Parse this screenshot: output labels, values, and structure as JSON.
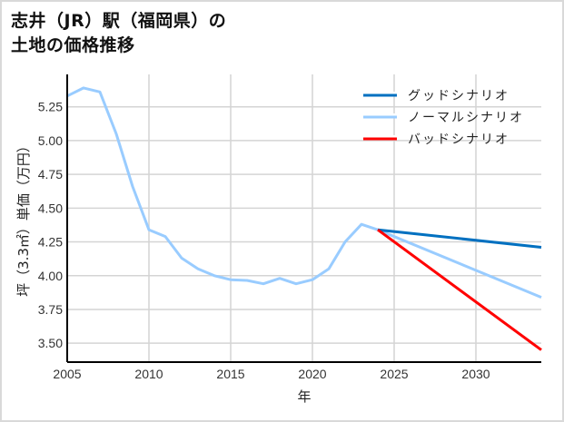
{
  "title": {
    "line1": "志井（JR）駅（福岡県）の",
    "line2": "土地の価格推移"
  },
  "chart_data": {
    "type": "line",
    "title": "志井（JR）駅（福岡県）の土地の価格推移",
    "xlabel": "年",
    "ylabel": "坪（3.3㎡）単価（万円）",
    "xlim": [
      2005,
      2034
    ],
    "ylim": [
      3.36,
      5.49
    ],
    "x_ticks": [
      2005,
      2010,
      2015,
      2020,
      2025,
      2030
    ],
    "y_ticks": [
      3.5,
      3.75,
      4.0,
      4.25,
      4.5,
      4.75,
      5.0,
      5.25
    ],
    "y_tick_labels": [
      "3.50",
      "3.75",
      "4.00",
      "4.25",
      "4.50",
      "4.75",
      "5.00",
      "5.25"
    ],
    "grid": true,
    "legend_position": "upper right",
    "series": [
      {
        "name": "グッドシナリオ",
        "color": "#0070c0",
        "x": [
          2024,
          2034
        ],
        "values": [
          4.34,
          4.21
        ]
      },
      {
        "name": "ノーマルシナリオ",
        "color": "#99ccff",
        "x": [
          2005,
          2006,
          2007,
          2008,
          2009,
          2010,
          2011,
          2012,
          2013,
          2014,
          2015,
          2016,
          2017,
          2018,
          2019,
          2020,
          2021,
          2022,
          2023,
          2024,
          2034
        ],
        "values": [
          5.33,
          5.39,
          5.36,
          5.05,
          4.66,
          4.34,
          4.29,
          4.13,
          4.05,
          4.0,
          3.97,
          3.965,
          3.94,
          3.98,
          3.94,
          3.97,
          4.05,
          4.25,
          4.38,
          4.34,
          3.84
        ]
      },
      {
        "name": "バッドシナリオ",
        "color": "#ff0000",
        "x": [
          2024,
          2034
        ],
        "values": [
          4.34,
          3.45
        ]
      }
    ]
  }
}
